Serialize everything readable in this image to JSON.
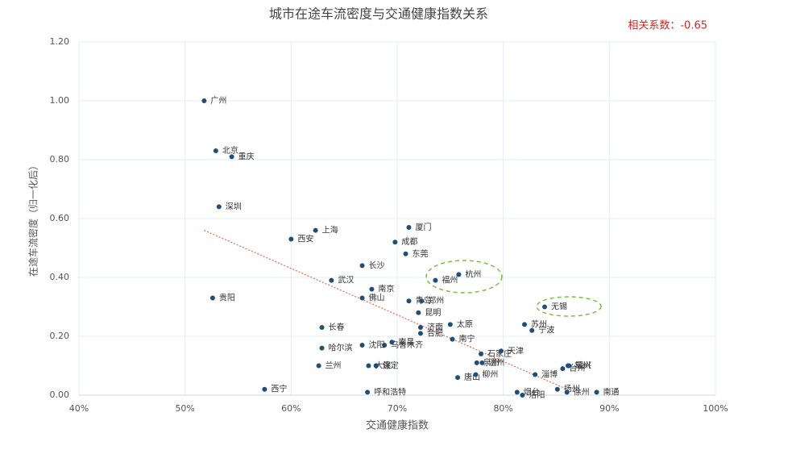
{
  "chart_data": {
    "type": "scatter",
    "title": "城市在途车流密度与交通健康指数关系",
    "annotation": "相关系数：-0.65",
    "x_label": "交通健康指数",
    "y_label": "在途车流密度（归一化后）",
    "color": "#1f4e79",
    "grid": true,
    "labels": [
      "广州",
      "北京",
      "重庆",
      "深圳",
      "上海",
      "西安",
      "成都",
      "厦门",
      "东莞",
      "长沙",
      "杭州",
      "福州",
      "武汉",
      "南京",
      "青岛",
      "郑州",
      "贵阳",
      "佛山",
      "无锡",
      "昆明",
      "苏州",
      "宁波",
      "长春",
      "济南",
      "太原",
      "合肥",
      "南宁",
      "乌鲁木齐",
      "沈阳",
      "南昌",
      "石家庄",
      "天津",
      "哈尔滨",
      "常州",
      "兰州",
      "保定",
      "大连",
      "台州",
      "绍兴",
      "泉州",
      "温州",
      "唐山",
      "柳州",
      "淄博",
      "烟台",
      "洛阳",
      "扬州",
      "徐州",
      "南通",
      "西宁",
      "呼和浩特"
    ],
    "x": [
      51.8,
      52.9,
      54.4,
      53.2,
      62.3,
      60.0,
      69.8,
      71.1,
      70.8,
      66.7,
      75.8,
      73.6,
      63.8,
      67.6,
      71.1,
      72.3,
      52.6,
      66.7,
      83.9,
      72.0,
      82.0,
      82.7,
      62.9,
      72.2,
      75.0,
      72.2,
      75.2,
      68.8,
      66.7,
      69.5,
      77.9,
      79.8,
      62.9,
      86.1,
      62.6,
      68.0,
      67.3,
      85.6,
      86.2,
      77.5,
      78.0,
      75.7,
      77.4,
      83.0,
      81.3,
      81.8,
      85.1,
      86.0,
      88.8,
      57.5,
      67.2
    ],
    "values": [
      1.0,
      0.83,
      0.81,
      0.64,
      0.56,
      0.53,
      0.52,
      0.57,
      0.48,
      0.44,
      0.41,
      0.39,
      0.39,
      0.36,
      0.32,
      0.32,
      0.33,
      0.33,
      0.3,
      0.28,
      0.24,
      0.22,
      0.23,
      0.23,
      0.24,
      0.21,
      0.19,
      0.17,
      0.17,
      0.18,
      0.14,
      0.15,
      0.16,
      0.1,
      0.1,
      0.1,
      0.1,
      0.09,
      0.1,
      0.11,
      0.11,
      0.06,
      0.07,
      0.07,
      0.01,
      0.0,
      0.02,
      0.01,
      0.01,
      0.02,
      0.01
    ],
    "trendline": {
      "color": "#e8735a",
      "x": [
        51.8,
        86.0
      ],
      "values": [
        0.56,
        0.02
      ]
    },
    "xlim": [
      40,
      100
    ],
    "xticks": [
      {
        "value": 40,
        "label": "40%"
      },
      {
        "value": 50,
        "label": "50%"
      },
      {
        "value": 60,
        "label": "60%"
      },
      {
        "value": 70,
        "label": "70%"
      },
      {
        "value": 80,
        "label": "80%"
      },
      {
        "value": 90,
        "label": "90%"
      },
      {
        "value": 100,
        "label": "100%"
      }
    ],
    "ylim": [
      0,
      1.2
    ],
    "yticks": [
      {
        "value": 0,
        "label": "0.00"
      },
      {
        "value": 0.2,
        "label": "0.20"
      },
      {
        "value": 0.4,
        "label": "0.40"
      },
      {
        "value": 0.6,
        "label": "0.60"
      },
      {
        "value": 0.8,
        "label": "0.80"
      },
      {
        "value": 1.0,
        "label": "1.00"
      },
      {
        "value": 1.2,
        "label": "1.20"
      }
    ]
  }
}
